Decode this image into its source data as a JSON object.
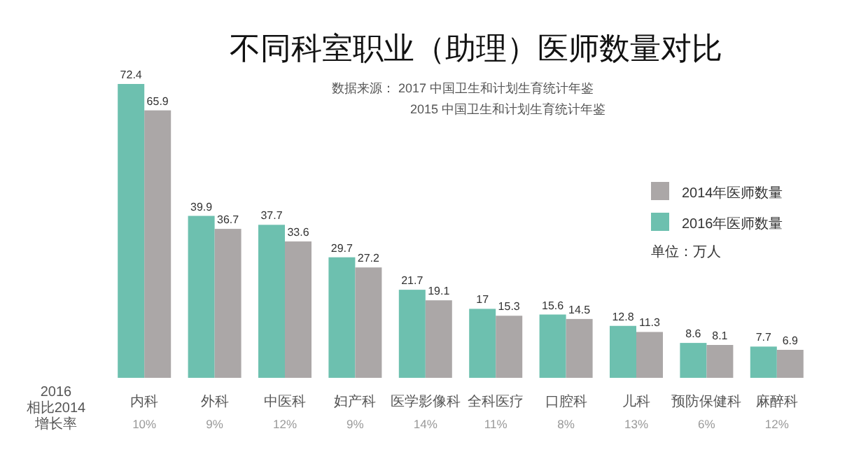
{
  "chart_data": {
    "type": "bar",
    "title": "不同科室职业（助理）医师数量对比",
    "subtitle": "数据来源：  2017  中国卫生和计划生育统计年鉴",
    "categories": [
      "内科",
      "外科",
      "中医科",
      "妇产科",
      "医学影像科",
      "全科医疗",
      "口腔科",
      "儿科",
      "预防保健科",
      "麻醉科"
    ],
    "series": [
      {
        "name": "2016年医师数量",
        "color": "#6dc0af",
        "values": [
          72.4,
          39.9,
          37.7,
          29.7,
          21.7,
          17,
          15.6,
          12.8,
          8.6,
          7.7
        ]
      },
      {
        "name": "2014年医师数量",
        "color": "#aba7a7",
        "values": [
          65.9,
          36.7,
          33.6,
          27.2,
          19.1,
          15.3,
          14.5,
          11.3,
          8.1,
          6.9
        ]
      }
    ],
    "data_labels": true,
    "legend": "right",
    "annotations": [
      "2015  中国卫生和计划生育统计年鉴",
      "单位：万人",
      "2016\n相比2014\n增长率",
      "10%",
      "9%",
      "12%",
      "9%",
      "14%",
      "11%",
      "8%",
      "13%",
      "6%",
      "12%"
    ]
  }
}
